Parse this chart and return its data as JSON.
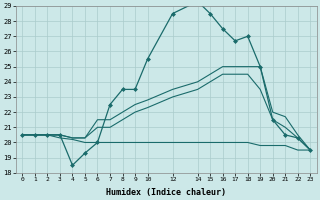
{
  "xlabel": "Humidex (Indice chaleur)",
  "ylabel": "",
  "background_color": "#cce8e8",
  "grid_color": "#aacccc",
  "line_color": "#1a6b6b",
  "xlim": [
    -0.5,
    23.5
  ],
  "ylim": [
    18,
    29
  ],
  "yticks": [
    18,
    19,
    20,
    21,
    22,
    23,
    24,
    25,
    26,
    27,
    28,
    29
  ],
  "xtick_positions": [
    0,
    1,
    2,
    3,
    4,
    5,
    6,
    7,
    8,
    9,
    10,
    12,
    14,
    15,
    16,
    17,
    18,
    19,
    20,
    21,
    22,
    23
  ],
  "xtick_labels": [
    "0",
    "1",
    "2",
    "3",
    "4",
    "5",
    "6",
    "7",
    "8",
    "9",
    "10",
    "12",
    "14",
    "15",
    "16",
    "17",
    "18",
    "19",
    "20",
    "21",
    "22",
    "23"
  ],
  "series": [
    {
      "x": [
        0,
        1,
        2,
        3,
        4,
        5,
        6,
        7,
        8,
        9,
        10,
        12,
        14,
        15,
        16,
        17,
        18,
        19,
        20,
        21,
        22,
        23
      ],
      "y": [
        20.5,
        20.5,
        20.5,
        20.5,
        18.5,
        19.3,
        20.0,
        22.5,
        23.5,
        23.5,
        25.5,
        28.5,
        29.3,
        28.5,
        27.5,
        26.7,
        27.0,
        25.0,
        21.5,
        20.5,
        20.3,
        19.5
      ],
      "has_markers": true
    },
    {
      "x": [
        0,
        1,
        2,
        3,
        4,
        5,
        6,
        7,
        8,
        9,
        10,
        12,
        14,
        15,
        16,
        17,
        18,
        19,
        20,
        21,
        22,
        23
      ],
      "y": [
        20.5,
        20.5,
        20.5,
        20.5,
        20.3,
        20.3,
        21.5,
        21.5,
        22.0,
        22.5,
        22.8,
        23.5,
        24.0,
        24.5,
        25.0,
        25.0,
        25.0,
        25.0,
        22.0,
        21.7,
        20.5,
        19.5
      ],
      "has_markers": false
    },
    {
      "x": [
        0,
        1,
        2,
        3,
        4,
        5,
        6,
        7,
        8,
        9,
        10,
        12,
        14,
        15,
        16,
        17,
        18,
        19,
        20,
        21,
        22,
        23
      ],
      "y": [
        20.5,
        20.5,
        20.5,
        20.5,
        20.3,
        20.3,
        21.0,
        21.0,
        21.5,
        22.0,
        22.3,
        23.0,
        23.5,
        24.0,
        24.5,
        24.5,
        24.5,
        23.5,
        21.5,
        21.0,
        20.3,
        19.5
      ],
      "has_markers": false
    },
    {
      "x": [
        0,
        1,
        2,
        3,
        4,
        5,
        6,
        7,
        8,
        9,
        10,
        12,
        14,
        15,
        16,
        17,
        18,
        19,
        20,
        21,
        22,
        23
      ],
      "y": [
        20.5,
        20.5,
        20.5,
        20.3,
        20.2,
        20.0,
        20.0,
        20.0,
        20.0,
        20.0,
        20.0,
        20.0,
        20.0,
        20.0,
        20.0,
        20.0,
        20.0,
        19.8,
        19.8,
        19.8,
        19.5,
        19.5
      ],
      "has_markers": false
    }
  ]
}
